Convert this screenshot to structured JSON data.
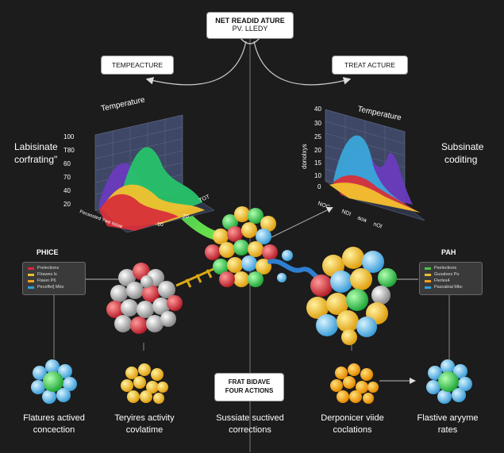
{
  "top_box": {
    "line1": "NET READID ATURE",
    "line2": "PV. LLEDY"
  },
  "left_panel": {
    "box": "TEMPEACTURE",
    "chart_title": "Temperature",
    "side_label_1": "Labisinate",
    "side_label_2": "corfrating\"",
    "y_ticks": [
      "100",
      "T80",
      "60",
      "70",
      "40",
      "20"
    ],
    "x_ticks": [
      "10",
      "20",
      "TOT"
    ],
    "x_axis_label": "Pecsosted Ywe issue"
  },
  "right_panel": {
    "box": "TREAT ACTURE",
    "chart_title": "Temperature",
    "side_label_1": "Subsinate",
    "side_label_2": "coditing",
    "y_ticks": [
      "40",
      "30",
      "25",
      "20",
      "15",
      "10",
      "0"
    ],
    "y_axis_label": "donolxys",
    "x_ticks": [
      "NOC",
      "NDI",
      "aoa",
      "nOl"
    ]
  },
  "left_legend": {
    "title": "PHICE",
    "items": [
      {
        "label": "Prelections",
        "color": "#e2233b"
      },
      {
        "label": "Flrawes ls",
        "color": "#e8c02b"
      },
      {
        "label": "Flaver P6",
        "color": "#f0a020"
      },
      {
        "label": "Pecelfet] Mbs",
        "color": "#2fa0d8"
      }
    ]
  },
  "right_legend": {
    "title": "PAH",
    "items": [
      {
        "label": "Pselections",
        "color": "#4cc34a"
      },
      {
        "label": "Gusalees Pu",
        "color": "#e8c02b"
      },
      {
        "label": "Flerles4",
        "color": "#f0a020"
      },
      {
        "label": "Pascabial Mbc",
        "color": "#2fa0d8"
      }
    ]
  },
  "center_box": {
    "line1": "FRAT BIDAVE",
    "line2": "FOUR ACTIONS"
  },
  "bottom_labels": [
    {
      "line1": "Flatures actived",
      "line2": "concection"
    },
    {
      "line1": "Teryires activity",
      "line2": "covlatime"
    },
    {
      "line1": "Sussiate suctived",
      "line2": "corrections"
    },
    {
      "line1": "Derponicer viide",
      "line2": "coclations"
    },
    {
      "line1": "Flastive aryyme",
      "line2": "rates"
    }
  ],
  "colors": {
    "background": "#1c1c1c",
    "red": "#d8303a",
    "yellow": "#f2c12e",
    "green": "#3ec94a",
    "blue": "#56b8e6",
    "purple": "#6c3fb8",
    "grey": "#b4b4b4"
  }
}
